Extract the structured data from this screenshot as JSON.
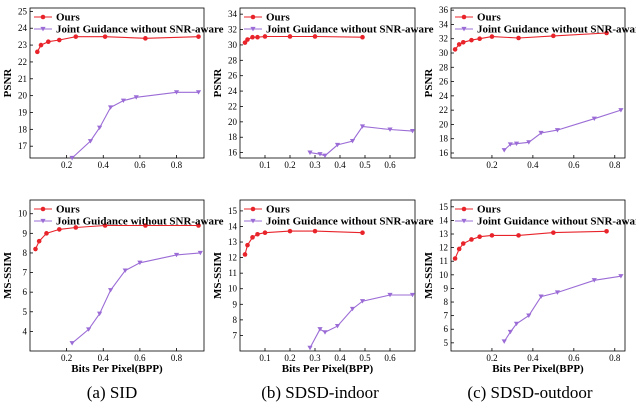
{
  "colors": {
    "ours": "#e8232a",
    "joint": "#9b6cd6"
  },
  "captions": [
    "(a) SID",
    "(b) SDSD-indoor",
    "(c) SDSD-outdoor"
  ],
  "chart_data": [
    {
      "type": "line",
      "panel": "SID-PSNR",
      "xlabel": "",
      "ylabel": "PSNR",
      "xlim": [
        0,
        0.95
      ],
      "ylim": [
        16.3,
        25.2
      ],
      "xticks": [
        0.2,
        0.4,
        0.6,
        0.8
      ],
      "xtick_labels": [
        "0.2",
        "0.4",
        "0.6",
        "0.8"
      ],
      "yticks": [
        17,
        18,
        19,
        20,
        21,
        22,
        23,
        24,
        25
      ],
      "legend": "top-left",
      "grid": false,
      "series": [
        {
          "name": "Ours",
          "x": [
            0.04,
            0.06,
            0.1,
            0.16,
            0.25,
            0.41,
            0.63,
            0.92
          ],
          "y": [
            22.6,
            23.0,
            23.2,
            23.3,
            23.5,
            23.5,
            23.4,
            23.5
          ]
        },
        {
          "name": "Joint Guidance without SNR-aware",
          "x": [
            0.23,
            0.33,
            0.38,
            0.44,
            0.51,
            0.58,
            0.8,
            0.92
          ],
          "y": [
            16.3,
            17.3,
            18.1,
            19.3,
            19.7,
            19.9,
            20.2,
            20.2
          ]
        }
      ]
    },
    {
      "type": "line",
      "panel": "SDSD-indoor-PSNR",
      "xlabel": "",
      "ylabel": "PSNR",
      "xlim": [
        0,
        0.7
      ],
      "ylim": [
        15.3,
        34.8
      ],
      "xticks": [
        0.1,
        0.2,
        0.3,
        0.4,
        0.5,
        0.6
      ],
      "xtick_labels": [
        "0.1",
        "0.2",
        "0.3",
        "0.4",
        "0.5",
        "0.6"
      ],
      "yticks": [
        16,
        18,
        20,
        22,
        24,
        26,
        28,
        30,
        32,
        34
      ],
      "legend": "top-left",
      "grid": false,
      "series": [
        {
          "name": "Ours",
          "x": [
            0.02,
            0.03,
            0.05,
            0.07,
            0.1,
            0.2,
            0.3,
            0.49
          ],
          "y": [
            30.3,
            30.7,
            31.0,
            31.0,
            31.1,
            31.1,
            31.1,
            31.0
          ]
        },
        {
          "name": "Joint Guidance without SNR-aware",
          "x": [
            0.28,
            0.32,
            0.34,
            0.39,
            0.45,
            0.49,
            0.6,
            0.69
          ],
          "y": [
            16.0,
            15.8,
            15.6,
            17.0,
            17.5,
            19.4,
            19.0,
            18.8
          ]
        }
      ]
    },
    {
      "type": "line",
      "panel": "SDSD-outdoor-PSNR",
      "xlabel": "",
      "ylabel": "PSNR",
      "xlim": [
        0,
        0.85
      ],
      "ylim": [
        15.3,
        36.3
      ],
      "xticks": [
        0.2,
        0.4,
        0.6,
        0.8
      ],
      "xtick_labels": [
        "0.2",
        "0.4",
        "0.6",
        "0.8"
      ],
      "yticks": [
        16,
        18,
        20,
        22,
        24,
        26,
        28,
        30,
        32,
        34,
        36
      ],
      "legend": "top-left",
      "grid": false,
      "series": [
        {
          "name": "Ours",
          "x": [
            0.02,
            0.04,
            0.06,
            0.1,
            0.14,
            0.2,
            0.33,
            0.5,
            0.76
          ],
          "y": [
            30.5,
            31.2,
            31.5,
            31.8,
            32.0,
            32.3,
            32.1,
            32.4,
            32.8
          ]
        },
        {
          "name": "Joint Guidance without SNR-aware",
          "x": [
            0.26,
            0.29,
            0.32,
            0.38,
            0.44,
            0.52,
            0.7,
            0.83
          ],
          "y": [
            16.4,
            17.2,
            17.3,
            17.5,
            18.8,
            19.2,
            20.8,
            22.0
          ]
        }
      ]
    },
    {
      "type": "line",
      "panel": "SID-MS-SSIM",
      "xlabel": "Bits Per Pixel(BPP)",
      "ylabel": "MS-SSIM",
      "xlim": [
        0,
        0.95
      ],
      "ylim": [
        3.0,
        10.7
      ],
      "xticks": [
        0.2,
        0.4,
        0.6,
        0.8
      ],
      "xtick_labels": [
        "0.2",
        "0.4",
        "0.6",
        "0.8"
      ],
      "yticks": [
        4,
        5,
        6,
        7,
        8,
        9,
        10
      ],
      "legend": "top-left",
      "grid": false,
      "series": [
        {
          "name": "Ours",
          "x": [
            0.03,
            0.05,
            0.09,
            0.16,
            0.25,
            0.41,
            0.63,
            0.92
          ],
          "y": [
            8.2,
            8.6,
            9.0,
            9.2,
            9.3,
            9.4,
            9.4,
            9.4
          ]
        },
        {
          "name": "Joint Guidance without SNR-aware",
          "x": [
            0.23,
            0.32,
            0.38,
            0.44,
            0.52,
            0.6,
            0.8,
            0.93
          ],
          "y": [
            3.4,
            4.1,
            4.9,
            6.1,
            7.1,
            7.5,
            7.9,
            8.0
          ]
        }
      ]
    },
    {
      "type": "line",
      "panel": "SDSD-indoor-MS-SSIM",
      "xlabel": "Bits Per Pixel(BPP)",
      "ylabel": "MS-SSIM",
      "xlim": [
        0,
        0.7
      ],
      "ylim": [
        6.0,
        15.7
      ],
      "xticks": [
        0.1,
        0.2,
        0.3,
        0.4,
        0.5,
        0.6
      ],
      "xtick_labels": [
        "0.1",
        "0.2",
        "0.3",
        "0.4",
        "0.5",
        "0.6"
      ],
      "yticks": [
        7,
        8,
        9,
        10,
        11,
        12,
        13,
        14,
        15
      ],
      "legend": "top-left",
      "grid": false,
      "series": [
        {
          "name": "Ours",
          "x": [
            0.02,
            0.03,
            0.05,
            0.07,
            0.1,
            0.2,
            0.3,
            0.49
          ],
          "y": [
            12.2,
            12.8,
            13.3,
            13.5,
            13.6,
            13.7,
            13.7,
            13.6
          ]
        },
        {
          "name": "Joint Guidance without SNR-aware",
          "x": [
            0.28,
            0.32,
            0.34,
            0.39,
            0.45,
            0.49,
            0.6,
            0.69
          ],
          "y": [
            6.2,
            7.4,
            7.2,
            7.6,
            8.7,
            9.2,
            9.6,
            9.6
          ]
        }
      ]
    },
    {
      "type": "line",
      "panel": "SDSD-outdoor-MS-SSIM",
      "xlabel": "Bits Per Pixel(BPP)",
      "ylabel": "MS-SSIM",
      "xlim": [
        0,
        0.85
      ],
      "ylim": [
        4.4,
        15.5
      ],
      "xticks": [
        0.2,
        0.4,
        0.6,
        0.8
      ],
      "xtick_labels": [
        "0.2",
        "0.4",
        "0.6",
        "0.8"
      ],
      "yticks": [
        5,
        6,
        7,
        8,
        9,
        10,
        11,
        12,
        13,
        14,
        15
      ],
      "legend": "top-left",
      "grid": false,
      "series": [
        {
          "name": "Ours",
          "x": [
            0.02,
            0.04,
            0.06,
            0.1,
            0.14,
            0.2,
            0.33,
            0.5,
            0.76
          ],
          "y": [
            11.2,
            11.9,
            12.3,
            12.6,
            12.8,
            12.9,
            12.9,
            13.1,
            13.2
          ]
        },
        {
          "name": "Joint Guidance without SNR-aware",
          "x": [
            0.26,
            0.29,
            0.32,
            0.38,
            0.44,
            0.52,
            0.7,
            0.83
          ],
          "y": [
            5.1,
            5.8,
            6.4,
            7.0,
            8.4,
            8.7,
            9.6,
            9.9
          ]
        }
      ]
    }
  ]
}
